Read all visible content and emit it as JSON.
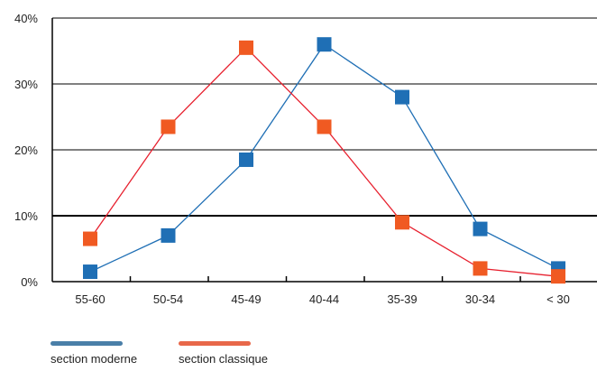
{
  "chart_data": {
    "type": "line",
    "categories": [
      "55-60",
      "50-54",
      "45-49",
      "40-44",
      "35-39",
      "30-34",
      "< 30"
    ],
    "ylim": [
      0,
      40
    ],
    "yticks": [
      0,
      10,
      20,
      30,
      40
    ],
    "ytick_labels": [
      "0%",
      "10%",
      "20%",
      "30%",
      "40%"
    ],
    "grid": true,
    "legend_position": "bottom-left",
    "series": [
      {
        "name": "section moderne",
        "color": "#1f6fb5",
        "legend_color": "#4a7fa8",
        "marker": "square",
        "values": [
          1.5,
          7,
          18.5,
          36,
          28,
          8,
          2
        ]
      },
      {
        "name": "section classique",
        "color": "#e7202e",
        "legend_color": "#e8684a",
        "marker_color": "#f05a22",
        "marker": "square",
        "values": [
          6.5,
          23.5,
          35.5,
          23.5,
          9,
          2,
          0.8
        ]
      }
    ]
  }
}
